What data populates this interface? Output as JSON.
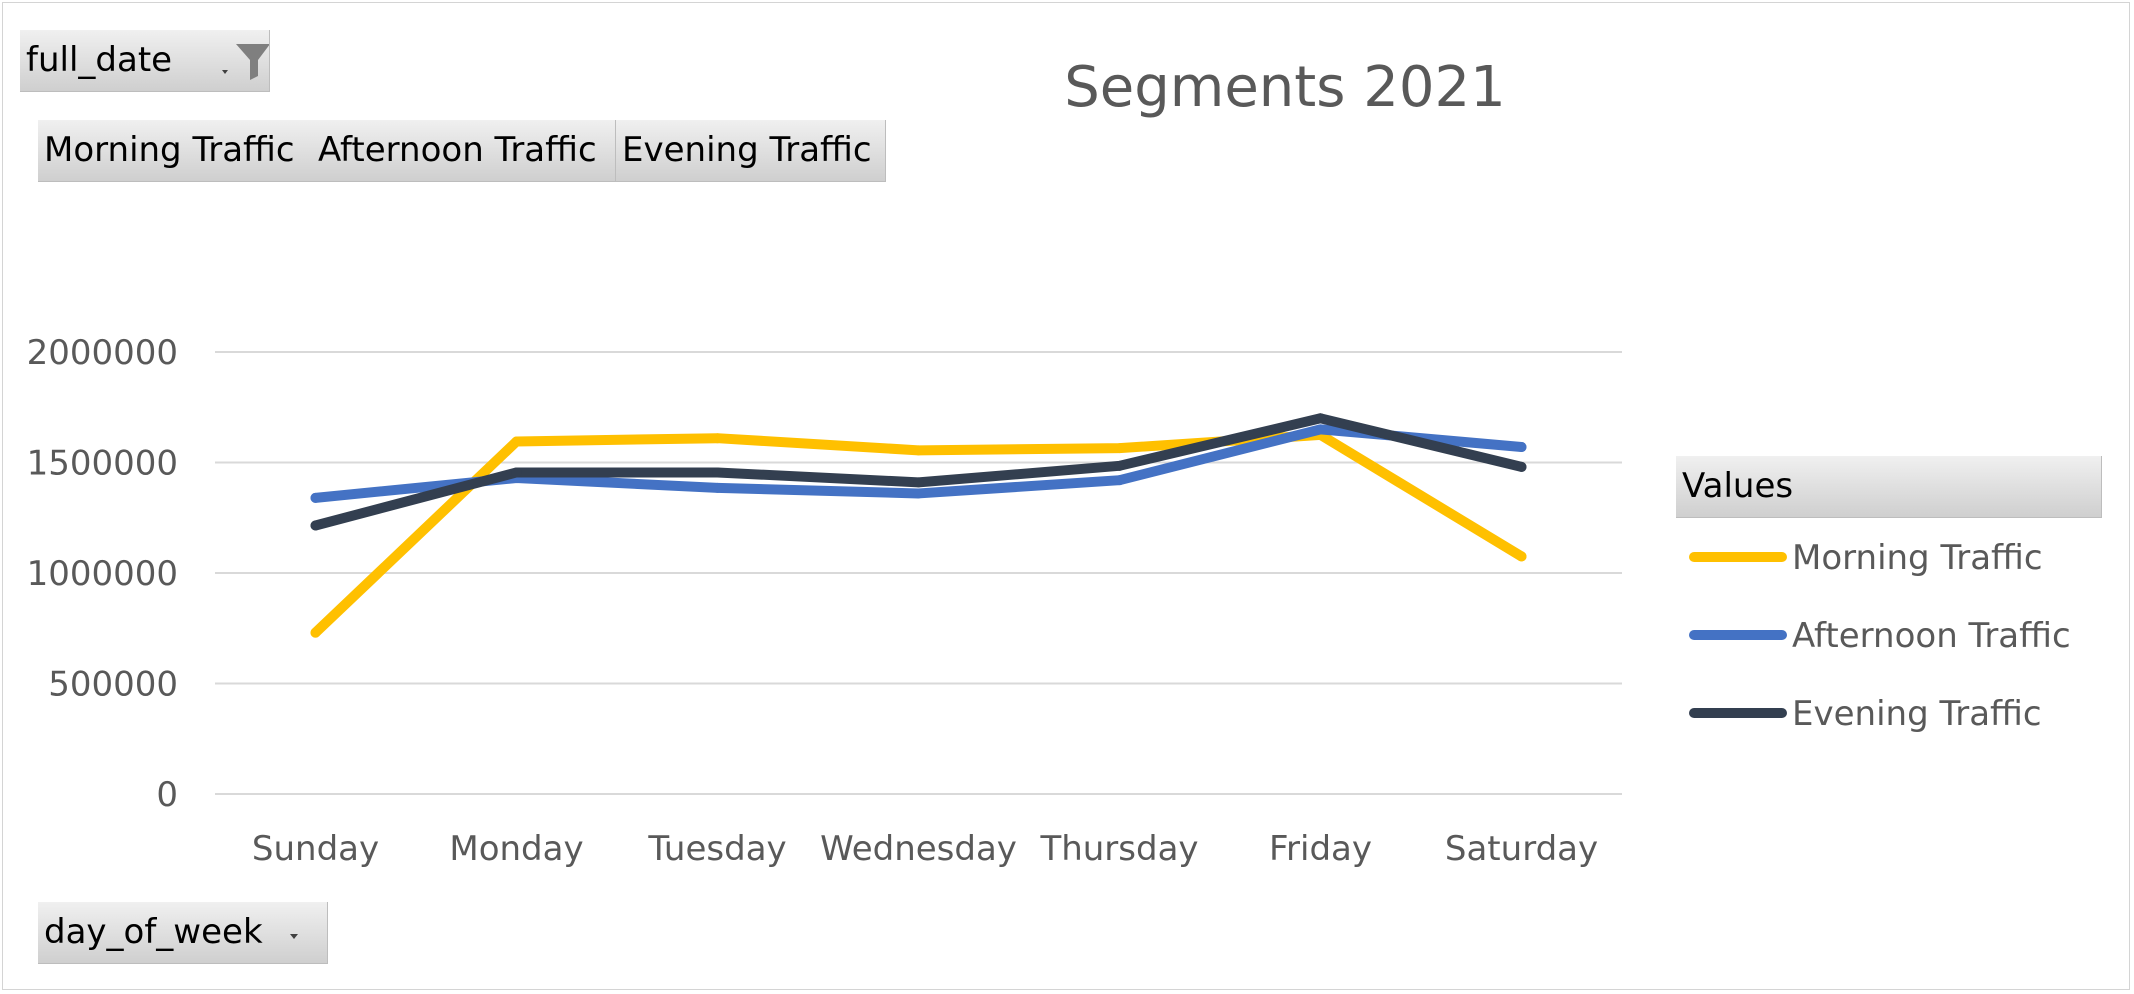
{
  "filter_field": {
    "label": "full_date",
    "icon": "filter-icon"
  },
  "value_fields": [
    "Morning Traffic",
    "Afternoon Traffic",
    "Evening Traffic"
  ],
  "axis_field": {
    "label": "day_of_week",
    "icon": "dropdown-arrow-icon"
  },
  "legend_title": "Values",
  "chart_data": {
    "type": "line",
    "title": "Segments 2021",
    "categories": [
      "Sunday",
      "Monday",
      "Tuesday",
      "Wednesday",
      "Thursday",
      "Friday",
      "Saturday"
    ],
    "y_ticks": [
      "0",
      "500000",
      "1000000",
      "1500000",
      "2000000"
    ],
    "ylim": [
      0,
      2000000
    ],
    "grid": true,
    "legend_position": "right",
    "series": [
      {
        "name": "Morning Traffic",
        "color": "#FFC000",
        "values": [
          730000,
          1595000,
          1610000,
          1555000,
          1565000,
          1625000,
          1075000
        ]
      },
      {
        "name": "Afternoon Traffic",
        "color": "#4472C4",
        "values": [
          1340000,
          1430000,
          1385000,
          1360000,
          1420000,
          1650000,
          1570000
        ]
      },
      {
        "name": "Evening Traffic",
        "color": "#333F50",
        "values": [
          1215000,
          1455000,
          1455000,
          1410000,
          1485000,
          1700000,
          1480000
        ]
      }
    ]
  }
}
